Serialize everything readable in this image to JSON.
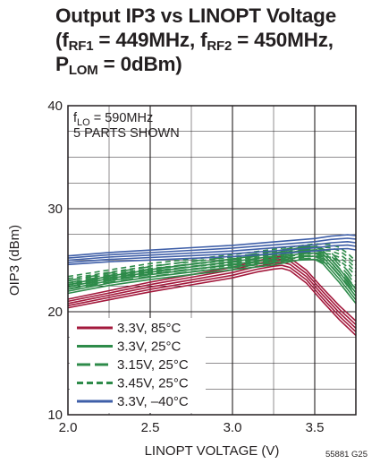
{
  "title": {
    "line1": "Output IP3 vs LINOPT Voltage",
    "line2": {
      "p1": "(f",
      "s1": "RF1",
      "p2": " = 449MHz, f",
      "s2": "RF2",
      "p3": " = 450MHz,"
    },
    "line3": {
      "p1": "P",
      "s1": "LOM",
      "p2": " = 0dBm)"
    }
  },
  "annotation": {
    "line1_pre": "f",
    "line1_sub": "LO",
    "line1_post": " = 590MHz",
    "line2": "5 PARTS SHOWN"
  },
  "figure_code": "55881 G25",
  "colors": {
    "red": "#a3193c",
    "green": "#2e8b4a",
    "blue": "#3f5fa8",
    "grid": "#231f20"
  },
  "chart_data": {
    "type": "line",
    "xlabel": "LINOPT VOLTAGE (V)",
    "ylabel": "OIP3 (dBm)",
    "xlim": [
      2.0,
      3.75
    ],
    "ylim": [
      10,
      40
    ],
    "xticks": [
      2.0,
      2.5,
      3.0,
      3.5
    ],
    "yticks": [
      10,
      20,
      30,
      40
    ],
    "xtick_labels": [
      "2.0",
      "2.5",
      "3.0",
      "3.5"
    ],
    "ytick_labels": [
      "10",
      "20",
      "30",
      "40"
    ],
    "grid": true,
    "legend_position": "bottom-left",
    "series": [
      {
        "name": "3.3V, 85°C",
        "color": "red",
        "dash": "solid",
        "parts": 5,
        "x": [
          2.0,
          2.25,
          2.5,
          2.75,
          3.0,
          3.15,
          3.25,
          3.3,
          3.35,
          3.45,
          3.55,
          3.65,
          3.75
        ],
        "y": [
          20.8,
          21.6,
          22.4,
          23.1,
          23.8,
          24.4,
          24.7,
          24.8,
          24.6,
          23.4,
          21.6,
          19.9,
          18.4
        ]
      },
      {
        "name": "3.3V, 25°C",
        "color": "green",
        "dash": "solid",
        "parts": 5,
        "x": [
          2.0,
          2.25,
          2.5,
          2.75,
          3.0,
          3.25,
          3.4,
          3.5,
          3.55,
          3.65,
          3.75
        ],
        "y": [
          22.2,
          23.0,
          23.6,
          24.1,
          24.6,
          25.1,
          25.6,
          25.7,
          25.3,
          23.5,
          21.5
        ]
      },
      {
        "name": "3.15V, 25°C",
        "color": "green",
        "dash": "long",
        "parts": 5,
        "x": [
          2.0,
          2.25,
          2.5,
          2.75,
          3.0,
          3.25,
          3.4,
          3.5,
          3.6,
          3.7,
          3.75
        ],
        "y": [
          22.6,
          23.3,
          23.9,
          24.4,
          24.8,
          25.3,
          25.7,
          25.8,
          25.1,
          23.3,
          22.2
        ]
      },
      {
        "name": "3.45V, 25°C",
        "color": "green",
        "dash": "short",
        "parts": 5,
        "x": [
          2.0,
          2.25,
          2.5,
          2.75,
          3.0,
          3.25,
          3.5,
          3.6,
          3.65,
          3.7,
          3.75
        ],
        "y": [
          23.0,
          23.6,
          24.2,
          24.6,
          25.0,
          25.5,
          26.0,
          25.9,
          25.6,
          25.0,
          24.2
        ]
      },
      {
        "name": "3.3V, –40°C",
        "color": "blue",
        "dash": "solid",
        "parts": 5,
        "x": [
          2.0,
          2.25,
          2.5,
          2.75,
          3.0,
          3.25,
          3.5,
          3.6,
          3.7,
          3.75
        ],
        "y": [
          25.0,
          25.3,
          25.5,
          25.7,
          25.9,
          26.2,
          26.5,
          26.7,
          26.8,
          26.7
        ]
      }
    ]
  }
}
